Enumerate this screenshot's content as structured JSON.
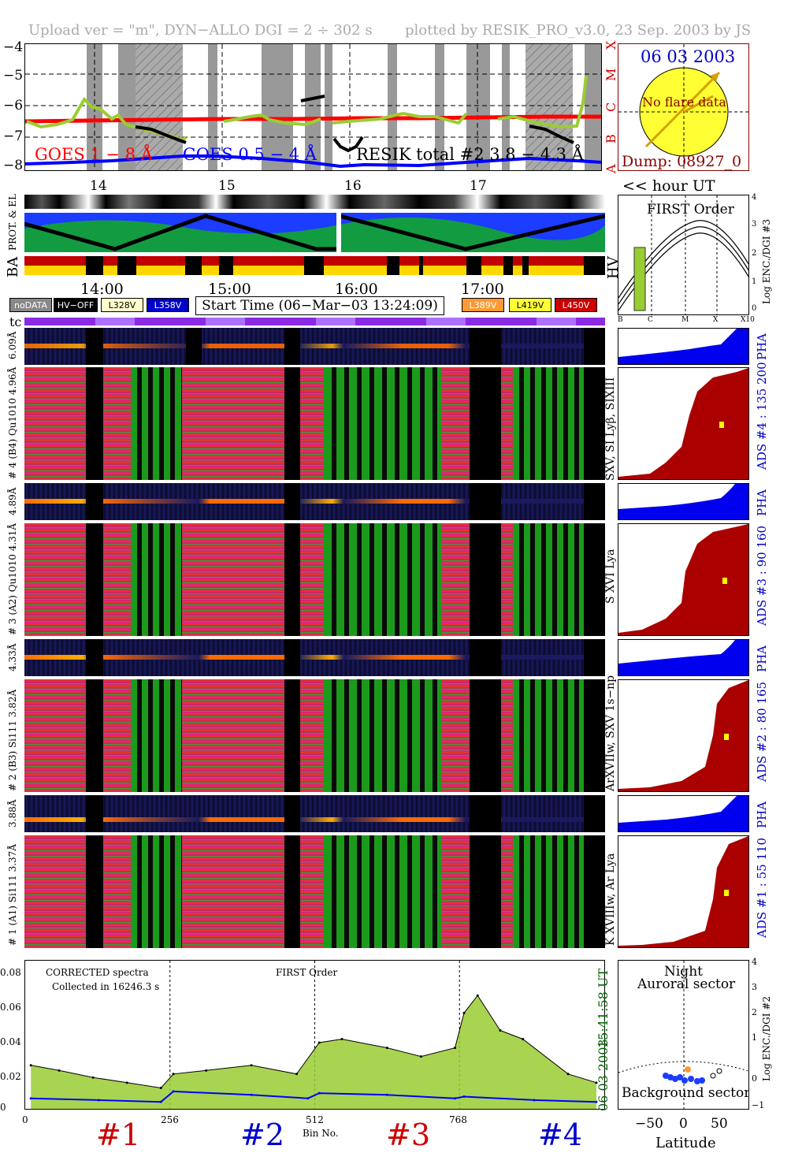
{
  "header": {
    "upload_text": "Upload ver = \"m\", DYN−ALLO DGI =   2 ÷ 302 s",
    "plotted_text": "plotted by RESIK_PRO_v3.0, 23 Sep. 2003 by JS"
  },
  "goes_panel": {
    "y_ticks": [
      "−4",
      "−5",
      "−6",
      "−7",
      "−8"
    ],
    "flare_classes": [
      "X",
      "M",
      "C",
      "B",
      "A"
    ],
    "legend_goes_long": "GOES 1 − 8 Å",
    "legend_goes_short": "GOES 0.5 − 4 Å",
    "legend_resik": "RESIK total #2  3.8 − 4.3 Å",
    "hour_ticks": [
      "14",
      "15",
      "16",
      "17"
    ],
    "hour_label": "<< hour UT",
    "colors": {
      "goes_long": "#ff0000",
      "goes_short": "#0000ff",
      "resik": "#9acd32"
    }
  },
  "sun_box": {
    "date": "06 03 2003",
    "flare_text": "No flare data",
    "dump": "Dump: 08927_0"
  },
  "orbit": {
    "label_prot_el": "PROT. & EL",
    "label_ba": "BA",
    "label_hv": "HV",
    "time_ticks": [
      "14:00",
      "15:00",
      "16:00",
      "17:00"
    ]
  },
  "legend_row": {
    "nodata": "noDATA",
    "hv_off": "HV−OFF",
    "l328": "L328V",
    "l358": "L358V",
    "start_time": "Start Time (06−Mar−03 13:24:09)",
    "l389": "L389V",
    "l419": "L419V",
    "l450": "L450V",
    "tc": "tc"
  },
  "first_order": {
    "title": "FIRST Order",
    "ylabel": "Log ENC./DGI #3",
    "y_ticks": [
      "4",
      "3",
      "2",
      "1",
      "0"
    ],
    "x_ticks": [
      "B",
      "C",
      "M",
      "X",
      "X10"
    ]
  },
  "channels": [
    {
      "pha_label": "6.09Å",
      "spec_label": "# 4 (B4) Qu1010 4.96Å",
      "line_label": "SXV, SI Lyβ, SIXIII",
      "ads_label": "ADS #4 :  135 200",
      "pha": "PHA"
    },
    {
      "pha_label": "4.89Å",
      "spec_label": "# 3 (A2) Qu1010 4.31Å",
      "line_label": "S XVI Lya",
      "ads_label": "ADS #3 :   90 160",
      "pha": "PHA"
    },
    {
      "pha_label": "4.33Å",
      "spec_label": "# 2 (B3) Si111 3.82Å",
      "line_label": "ArXVIIw, SXV 1s−np",
      "ads_label": "ADS #2 :   80 165",
      "pha": "PHA"
    },
    {
      "pha_label": "3.88Å",
      "spec_label": "# 1 (A1) Si111 3.37Å",
      "line_label": "K XVIIIw, Ar Lya",
      "ads_label": "ADS #1 :   55 110",
      "pha": "PHA"
    }
  ],
  "spectrum": {
    "text_corrected": "CORRECTED spectra",
    "text_collected": "Collected in 16246.3 s",
    "text_first": "FIRST Order",
    "time_label": "15:41:58 UT",
    "date_label": "06 03 2003",
    "xlabel": "Bin No.",
    "section_labels": [
      "#1",
      "#2",
      "#3",
      "#4"
    ]
  },
  "latitude_panel": {
    "night": "Night",
    "auroral": "Auroral sector",
    "background": "Background sector",
    "xlabel": "Latitude",
    "ylabel": "Log ENC./DGI #2",
    "x_ticks": [
      "−50",
      "0",
      "50"
    ],
    "y_ticks": [
      "4",
      "3",
      "2",
      "1",
      "0",
      "−1"
    ]
  },
  "chart_data": {
    "type": "line",
    "title": "",
    "xlabel": "Bin No.",
    "ylabel": "",
    "x_ticks": [
      0,
      256,
      512,
      768
    ],
    "y_ticks": [
      0.0,
      0.02,
      0.04,
      0.06,
      0.08
    ],
    "xlim": [
      0,
      1024
    ],
    "ylim": [
      0,
      0.085
    ],
    "series": [
      {
        "name": "",
        "color": "#9acd32",
        "x": [
          10,
          60,
          120,
          180,
          240,
          262,
          320,
          400,
          480,
          520,
          560,
          640,
          700,
          760,
          776,
          800,
          840,
          880,
          960,
          1010
        ],
        "values": [
          0.025,
          0.022,
          0.018,
          0.015,
          0.012,
          0.02,
          0.022,
          0.025,
          0.02,
          0.038,
          0.04,
          0.035,
          0.03,
          0.035,
          0.055,
          0.065,
          0.045,
          0.04,
          0.02,
          0.015
        ]
      },
      {
        "name": "",
        "color": "#0000ff",
        "x": [
          10,
          130,
          240,
          262,
          400,
          500,
          520,
          640,
          760,
          776,
          900,
          1010
        ],
        "values": [
          0.006,
          0.005,
          0.004,
          0.01,
          0.008,
          0.006,
          0.009,
          0.008,
          0.006,
          0.007,
          0.005,
          0.004
        ]
      }
    ]
  }
}
